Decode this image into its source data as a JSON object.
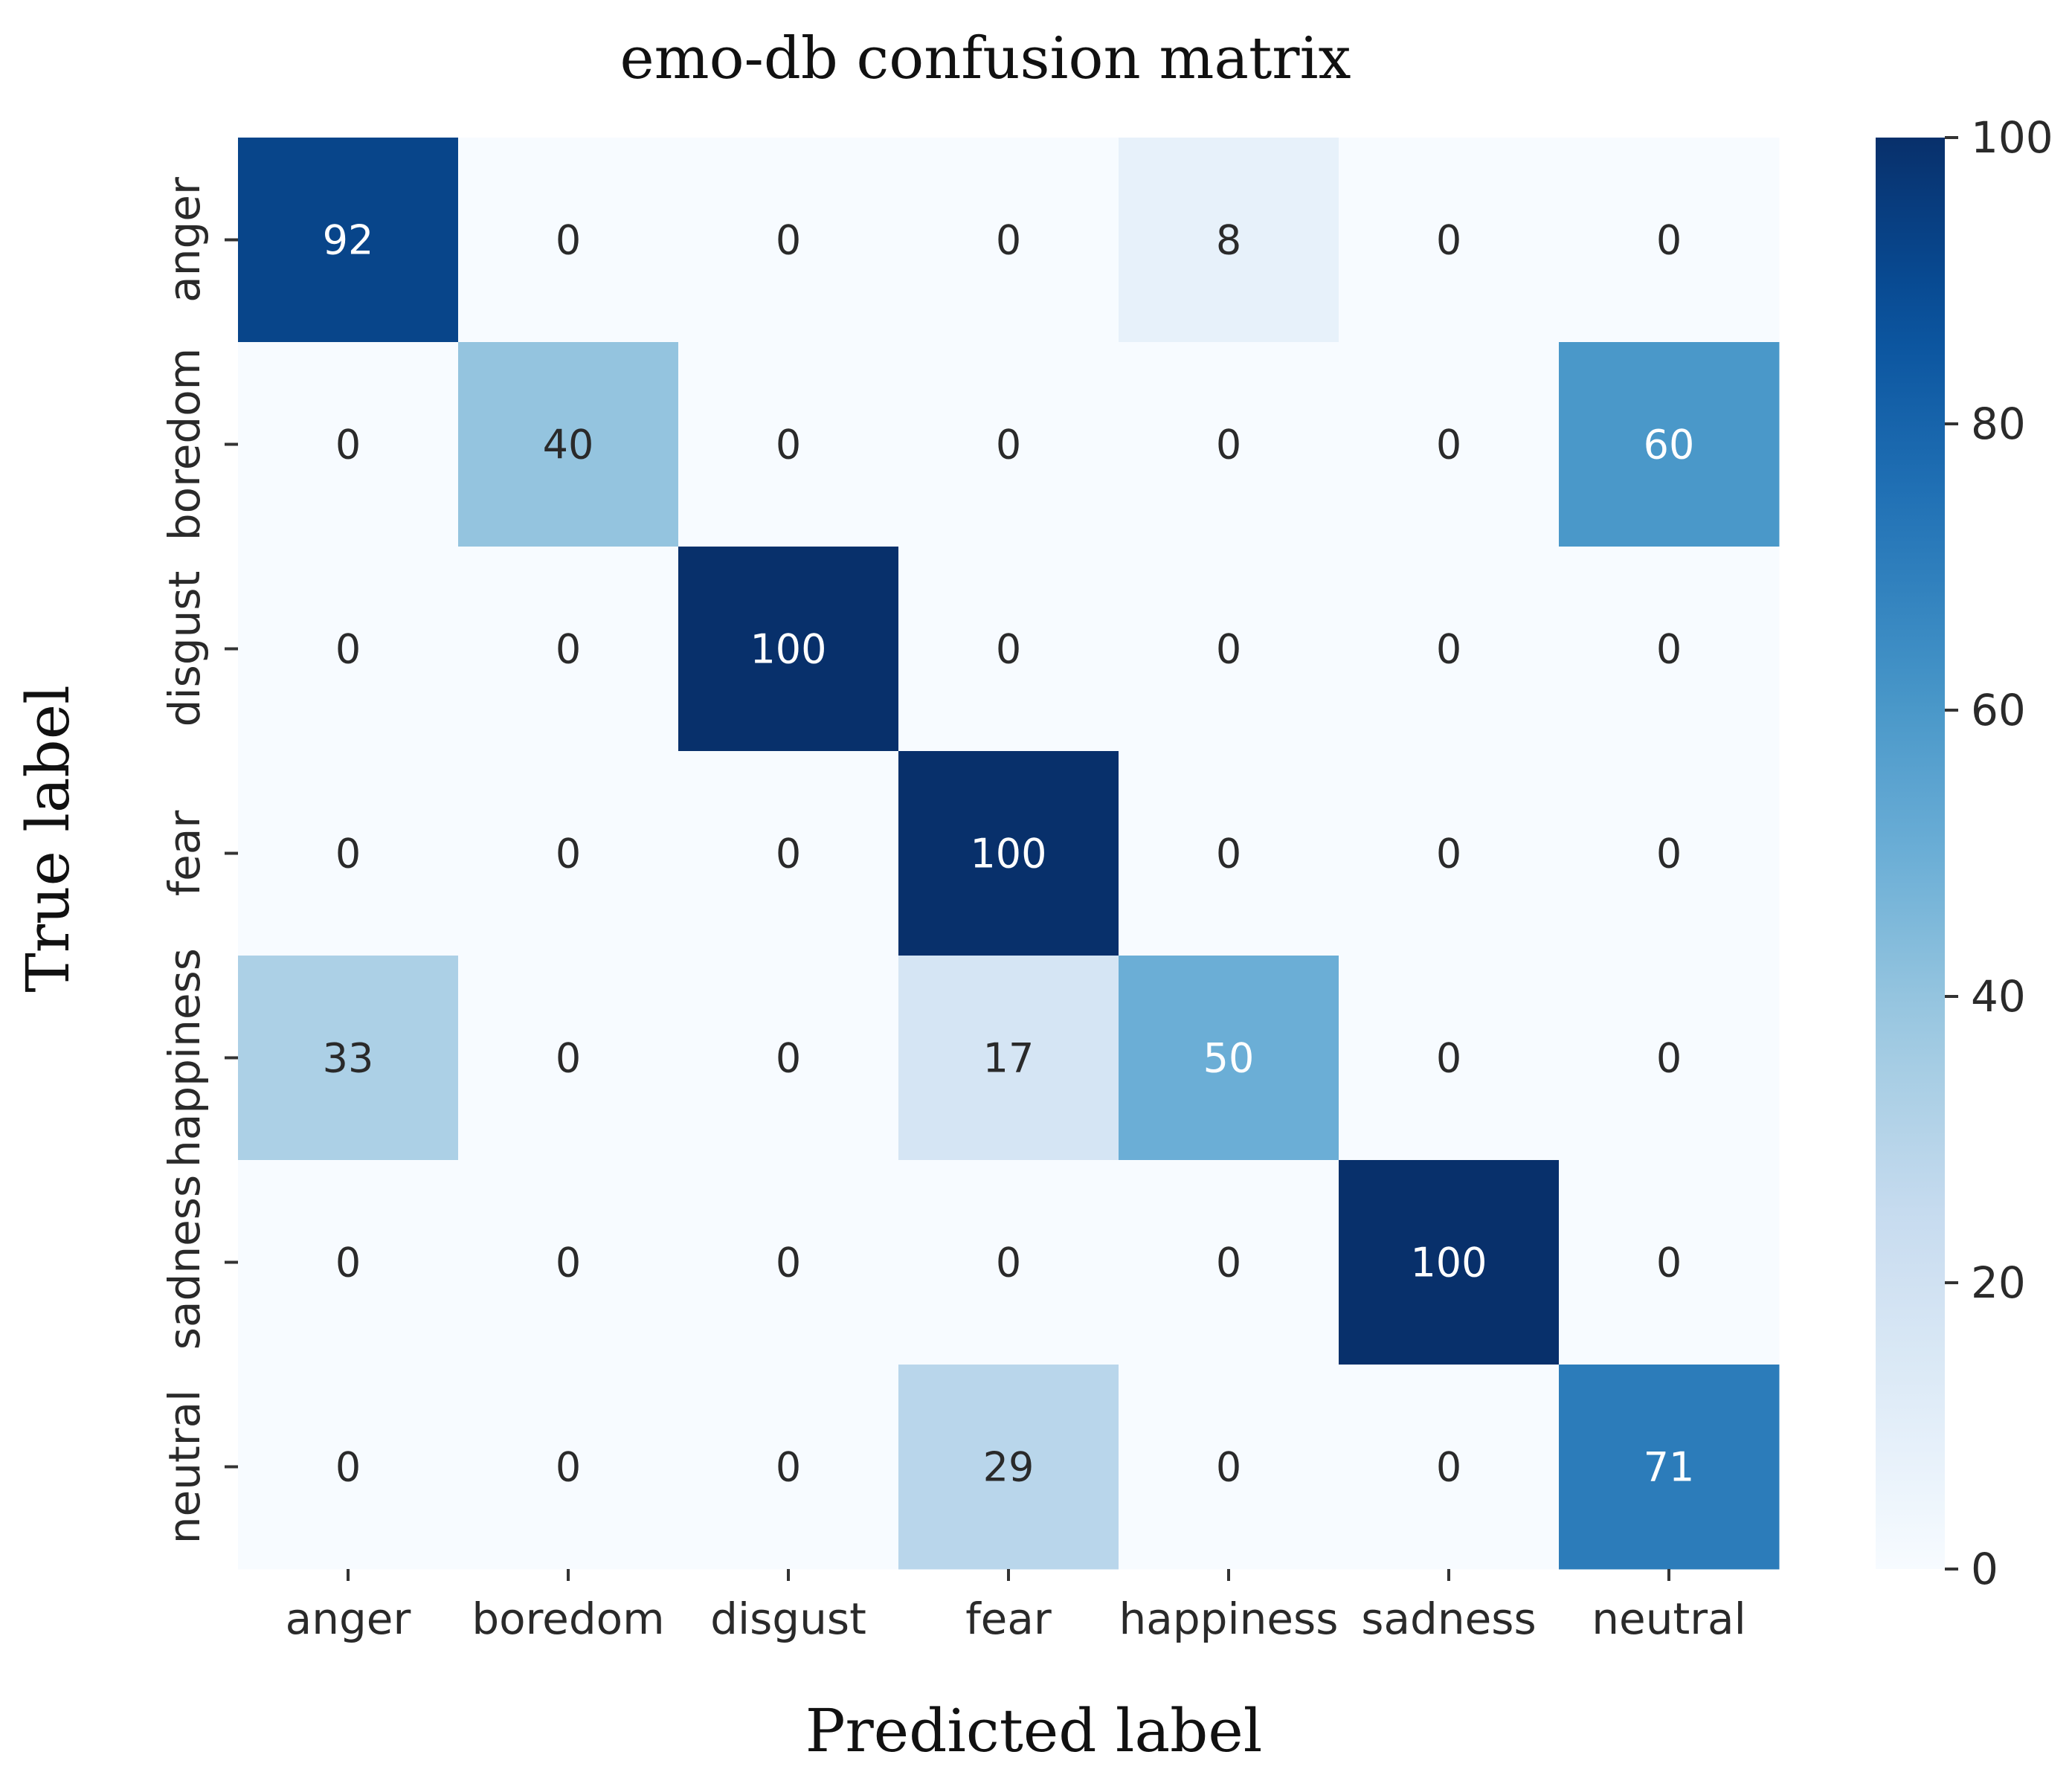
{
  "chart_data": {
    "type": "heatmap",
    "title": "emo-db confusion matrix",
    "xlabel": "Predicted label",
    "ylabel": "True label",
    "x_categories": [
      "anger",
      "boredom",
      "disgust",
      "fear",
      "happiness",
      "sadness",
      "neutral"
    ],
    "y_categories": [
      "anger",
      "boredom",
      "disgust",
      "fear",
      "happiness",
      "sadness",
      "neutral"
    ],
    "values": [
      [
        92,
        0,
        0,
        0,
        8,
        0,
        0
      ],
      [
        0,
        40,
        0,
        0,
        0,
        0,
        60
      ],
      [
        0,
        0,
        100,
        0,
        0,
        0,
        0
      ],
      [
        0,
        0,
        0,
        100,
        0,
        0,
        0
      ],
      [
        33,
        0,
        0,
        17,
        50,
        0,
        0
      ],
      [
        0,
        0,
        0,
        0,
        0,
        100,
        0
      ],
      [
        0,
        0,
        0,
        29,
        0,
        0,
        71
      ]
    ],
    "colormap": "Blues",
    "colorbar": {
      "range": [
        0,
        100
      ],
      "ticks": [
        0,
        20,
        40,
        60,
        80,
        100
      ]
    },
    "colorbar_ticks_labels": [
      "0",
      "20",
      "40",
      "60",
      "80",
      "100"
    ]
  }
}
